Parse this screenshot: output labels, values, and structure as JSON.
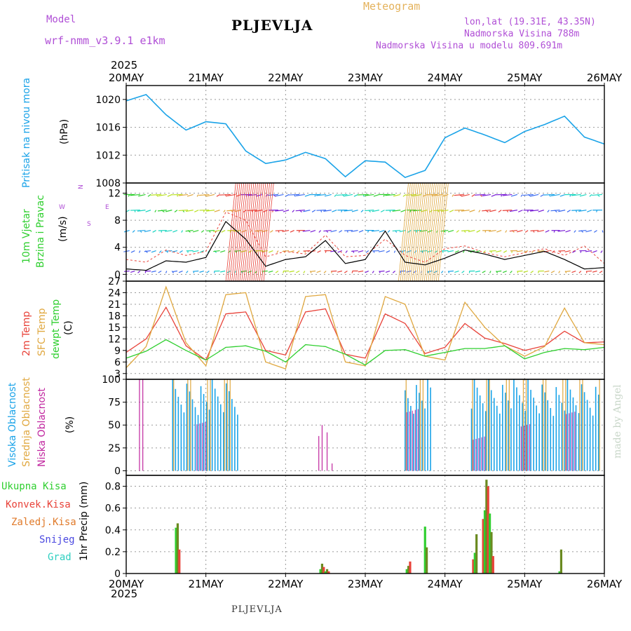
{
  "header": {
    "model_label": "Model",
    "model_name": "wrf-nmm_v3.9.1 e1km",
    "station": "PLJEVLJA",
    "meteogram_label": "Meteogram",
    "coords": "lon,lat (19.31E, 43.35N)",
    "altitude": "Nadmorska Visina 788m",
    "model_altitude": "Nadmorska Visina u modelu 809.691m",
    "year_top": "2025",
    "year_bottom": "2025"
  },
  "footer": {
    "station": "PLJEVLJA",
    "watermark": "made by Angel"
  },
  "colors": {
    "pressure": "#1aa3e8",
    "temp2m": "#e8433a",
    "sfc": "#e0a840",
    "dew": "#2fcf2f",
    "high_cloud": "#1aa3e8",
    "mid_cloud": "#e0a840",
    "low_cloud": "#c0269f",
    "precip_total": "#2fcf2f",
    "precip_conv": "#e8433a",
    "precip_strat": "#e07a2a",
    "snow": "#4a48e0",
    "graupel": "#2fcfc0",
    "wind_label": "#2fcf2f",
    "model_text": "#b04fd6"
  },
  "chart_data": [
    {
      "type": "line",
      "panel": "pressure",
      "ylabel": [
        "Pritisak na nivou mora",
        "(hPa)"
      ],
      "ylim": [
        1008,
        1022
      ],
      "yticks": [
        1008,
        1012,
        1016,
        1020
      ],
      "x_ticks": [
        "20MAY",
        "21MAY",
        "22MAY",
        "23MAY",
        "24MAY",
        "25MAY",
        "26MAY"
      ],
      "x_hours": [
        0,
        6,
        12,
        18,
        24,
        30,
        36,
        42,
        48,
        54,
        60,
        66,
        72,
        78,
        84,
        90,
        96,
        102,
        108,
        114,
        120,
        126,
        132,
        138,
        144
      ],
      "series": [
        {
          "values": [
            1019.8,
            1020.7,
            1017.8,
            1015.6,
            1016.8,
            1016.5,
            1012.6,
            1010.8,
            1011.3,
            1012.4,
            1011.5,
            1008.9,
            1011.2,
            1011.0,
            1008.8,
            1009.8,
            1014.5,
            1015.9,
            1014.9,
            1013.8,
            1015.4,
            1016.4,
            1017.6,
            1014.6,
            1013.6
          ]
        }
      ]
    },
    {
      "type": "line",
      "panel": "wind",
      "ylabel": [
        "10m Vjetar",
        "Brzina i Pravac",
        "(m/s)"
      ],
      "ylim": [
        -1,
        13.5
      ],
      "yticks": [
        0,
        4,
        8,
        12
      ],
      "series": [
        {
          "name": "speed",
          "values": [
            0.8,
            0.6,
            2.0,
            1.8,
            2.5,
            7.8,
            5.2,
            1.2,
            2.2,
            2.6,
            5.0,
            1.6,
            2.2,
            6.4,
            1.8,
            1.4,
            2.4,
            3.6,
            3.0,
            2.2,
            2.8,
            3.4,
            2.2,
            0.8,
            1.0
          ]
        },
        {
          "name": "gust",
          "values": [
            2.2,
            1.8,
            3.6,
            2.8,
            3.4,
            9.2,
            8.0,
            2.6,
            3.4,
            3.0,
            5.8,
            2.6,
            2.8,
            5.2,
            2.8,
            1.8,
            3.8,
            4.2,
            3.2,
            2.6,
            3.2,
            3.8,
            2.8,
            4.2,
            1.6
          ]
        }
      ]
    },
    {
      "type": "line",
      "panel": "temperature",
      "ylabel": [
        "2m Temp",
        "SFC Temp",
        "dewpt Temp",
        "(C)"
      ],
      "ylim": [
        1.5,
        27
      ],
      "yticks": [
        3,
        6,
        9,
        12,
        15,
        18,
        21,
        24,
        27
      ],
      "series": [
        {
          "name": "2m Temp",
          "values": [
            8.5,
            12.0,
            20.2,
            10.2,
            6.5,
            18.5,
            19.0,
            9.0,
            7.8,
            19.0,
            19.8,
            8.0,
            7.0,
            18.5,
            16.0,
            8.2,
            9.8,
            16.0,
            12.2,
            10.8,
            9.0,
            10.2,
            14.0,
            11.0,
            11.2
          ]
        },
        {
          "name": "SFC Temp",
          "values": [
            4.5,
            10.0,
            25.5,
            11.0,
            5.0,
            23.5,
            24.0,
            6.0,
            4.2,
            23.0,
            23.5,
            6.0,
            5.0,
            23.0,
            21.0,
            7.5,
            6.5,
            21.5,
            15.0,
            10.2,
            7.5,
            10.0,
            20.0,
            11.0,
            10.5
          ]
        },
        {
          "name": "dewpt Temp",
          "values": [
            7.0,
            8.8,
            11.8,
            9.0,
            6.5,
            9.8,
            10.2,
            8.8,
            6.0,
            10.5,
            10.0,
            8.0,
            5.2,
            9.0,
            9.2,
            7.5,
            8.5,
            9.5,
            9.5,
            10.2,
            6.8,
            8.5,
            9.5,
            9.2,
            9.8
          ]
        }
      ]
    },
    {
      "type": "bar",
      "panel": "clouds",
      "ylabel": [
        "Visoka Oblacnost",
        "Srednja Oblacnost",
        "Niska Oblacnost",
        "(%)"
      ],
      "ylim": [
        -5,
        100
      ],
      "yticks": [
        0,
        25,
        50,
        75,
        100
      ],
      "series": [
        {
          "name": "Visoka Oblacnost",
          "pattern": "high"
        },
        {
          "name": "Srednja Oblacnost",
          "pattern": "mid"
        },
        {
          "name": "Niska Oblacnost",
          "pattern": "low"
        }
      ]
    },
    {
      "type": "bar",
      "panel": "precip",
      "ylabel": [
        "1hr Precip (mm)"
      ],
      "ylim": [
        0,
        0.9
      ],
      "yticks": [
        0,
        0.2,
        0.4,
        0.6,
        0.8
      ],
      "legend": [
        "Ukupna Kisa",
        "Konvek.Kisa",
        "Zaledj.Kisa",
        "Snijeg",
        "Grad"
      ],
      "bars": [
        {
          "hour": 15.0,
          "value": 0.42
        },
        {
          "hour": 15.5,
          "value": 0.46
        },
        {
          "hour": 16.0,
          "value": 0.22
        },
        {
          "hour": 58.5,
          "value": 0.04
        },
        {
          "hour": 59.0,
          "value": 0.09
        },
        {
          "hour": 59.5,
          "value": 0.06
        },
        {
          "hour": 60.0,
          "value": 0.02
        },
        {
          "hour": 60.5,
          "value": 0.04
        },
        {
          "hour": 61.0,
          "value": 0.02
        },
        {
          "hour": 84.5,
          "value": 0.04
        },
        {
          "hour": 85.0,
          "value": 0.07
        },
        {
          "hour": 85.5,
          "value": 0.11
        },
        {
          "hour": 90.0,
          "value": 0.43
        },
        {
          "hour": 90.5,
          "value": 0.24
        },
        {
          "hour": 104.5,
          "value": 0.13
        },
        {
          "hour": 105.0,
          "value": 0.19
        },
        {
          "hour": 105.5,
          "value": 0.36
        },
        {
          "hour": 107.5,
          "value": 0.5
        },
        {
          "hour": 108.0,
          "value": 0.58
        },
        {
          "hour": 108.5,
          "value": 0.86
        },
        {
          "hour": 109.0,
          "value": 0.8
        },
        {
          "hour": 109.5,
          "value": 0.55
        },
        {
          "hour": 110.0,
          "value": 0.38
        },
        {
          "hour": 110.5,
          "value": 0.16
        },
        {
          "hour": 130.5,
          "value": 0.02
        },
        {
          "hour": 131.0,
          "value": 0.22
        }
      ]
    }
  ]
}
